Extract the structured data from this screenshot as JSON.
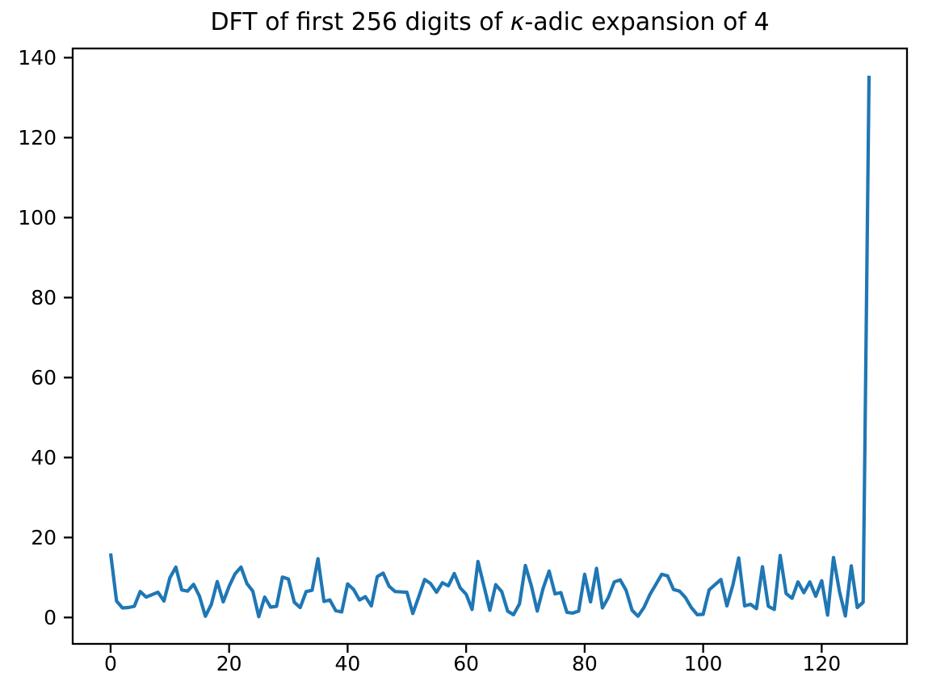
{
  "figure": {
    "background_color": "#ffffff",
    "frame_color": "#000000",
    "text_color": "#000000"
  },
  "chart_data": {
    "type": "line",
    "title": "DFT of first 256 digits of κ-adic expansion of 4",
    "title_parts": {
      "prefix": "DFT of first 256 digits of ",
      "kappa": "κ",
      "suffix": "-adic expansion of 4"
    },
    "xlabel": "",
    "ylabel": "",
    "x_description": "frequency index 0–128 (one point per index)",
    "values": [
      16.0,
      4.1,
      2.4,
      2.5,
      2.8,
      6.5,
      5.1,
      5.7,
      6.3,
      4.1,
      9.9,
      12.6,
      6.9,
      6.6,
      8.3,
      5.3,
      0.3,
      3.3,
      9.0,
      3.9,
      7.8,
      10.9,
      12.6,
      8.5,
      6.6,
      0.2,
      5.1,
      2.6,
      2.8,
      10.1,
      9.6,
      3.8,
      2.5,
      6.5,
      6.8,
      14.7,
      4.0,
      4.4,
      1.7,
      1.4,
      8.4,
      7.0,
      4.4,
      5.2,
      2.9,
      10.2,
      11.1,
      7.8,
      6.5,
      6.4,
      6.3,
      1.0,
      5.2,
      9.5,
      8.5,
      6.3,
      8.7,
      7.9,
      11.0,
      7.4,
      5.8,
      2.0,
      14.0,
      7.9,
      1.8,
      8.2,
      6.5,
      1.6,
      0.7,
      3.4,
      13.0,
      7.9,
      1.6,
      7.3,
      11.6,
      5.9,
      6.2,
      1.3,
      1.1,
      1.6,
      10.8,
      3.9,
      12.3,
      2.4,
      5.0,
      8.9,
      9.4,
      6.8,
      1.8,
      0.3,
      2.5,
      5.7,
      8.2,
      10.8,
      10.4,
      7.0,
      6.6,
      5.0,
      2.5,
      0.7,
      0.8,
      6.9,
      8.2,
      9.5,
      2.9,
      8.0,
      14.9,
      2.9,
      3.3,
      2.2,
      12.7,
      2.8,
      2.0,
      15.5,
      6.0,
      4.8,
      8.9,
      6.2,
      8.9,
      5.3,
      9.2,
      0.6,
      15.0,
      6.5,
      0.4,
      12.9,
      2.5,
      3.8,
      135.5
    ],
    "x_ticks": [
      0,
      20,
      40,
      60,
      80,
      100,
      120
    ],
    "y_ticks": [
      0,
      20,
      40,
      60,
      80,
      100,
      120,
      140
    ],
    "xlim": [
      -6.4,
      134.4
    ],
    "ylim": [
      -6.6,
      142.3
    ],
    "grid": false,
    "legend": "none",
    "line_color": "#1f77b4"
  }
}
